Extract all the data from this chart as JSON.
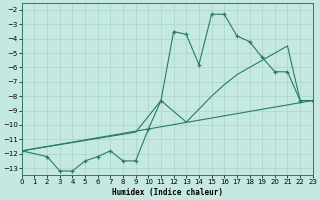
{
  "xlabel": "Humidex (Indice chaleur)",
  "bg_color": "#c5e8e3",
  "grid_color": "#a8d4cc",
  "line_color": "#2a7a6a",
  "xlim": [
    0,
    23
  ],
  "ylim": [
    -13.5,
    -1.5
  ],
  "xticks": [
    0,
    1,
    2,
    3,
    4,
    5,
    6,
    7,
    8,
    9,
    10,
    11,
    12,
    13,
    14,
    15,
    16,
    17,
    18,
    19,
    20,
    21,
    22,
    23
  ],
  "yticks": [
    -2,
    -3,
    -4,
    -5,
    -6,
    -7,
    -8,
    -9,
    -10,
    -11,
    -12,
    -13
  ],
  "line1_x": [
    0,
    2,
    3,
    4,
    5,
    6,
    7,
    8,
    9,
    10,
    11,
    12,
    13,
    14,
    15,
    16,
    17,
    18,
    19,
    20,
    21,
    22,
    23
  ],
  "line1_y": [
    -11.8,
    -12.2,
    -13.2,
    -13.2,
    -12.5,
    -12.2,
    -11.8,
    -12.5,
    -12.5,
    -10.3,
    -8.3,
    -3.5,
    -3.7,
    -5.8,
    -2.3,
    -2.3,
    -3.8,
    -4.2,
    -5.3,
    -6.3,
    -6.3,
    -8.3,
    -8.3
  ],
  "line2_x": [
    0,
    9,
    11,
    13,
    15,
    16,
    17,
    18,
    19,
    20,
    21,
    22,
    23
  ],
  "line2_y": [
    -11.8,
    -10.5,
    -8.3,
    -9.8,
    -8.0,
    -7.2,
    -6.5,
    -6.0,
    -5.5,
    -5.0,
    -4.5,
    -8.3,
    -8.3
  ],
  "line3_x": [
    0,
    23
  ],
  "line3_y": [
    -11.8,
    -8.3
  ]
}
